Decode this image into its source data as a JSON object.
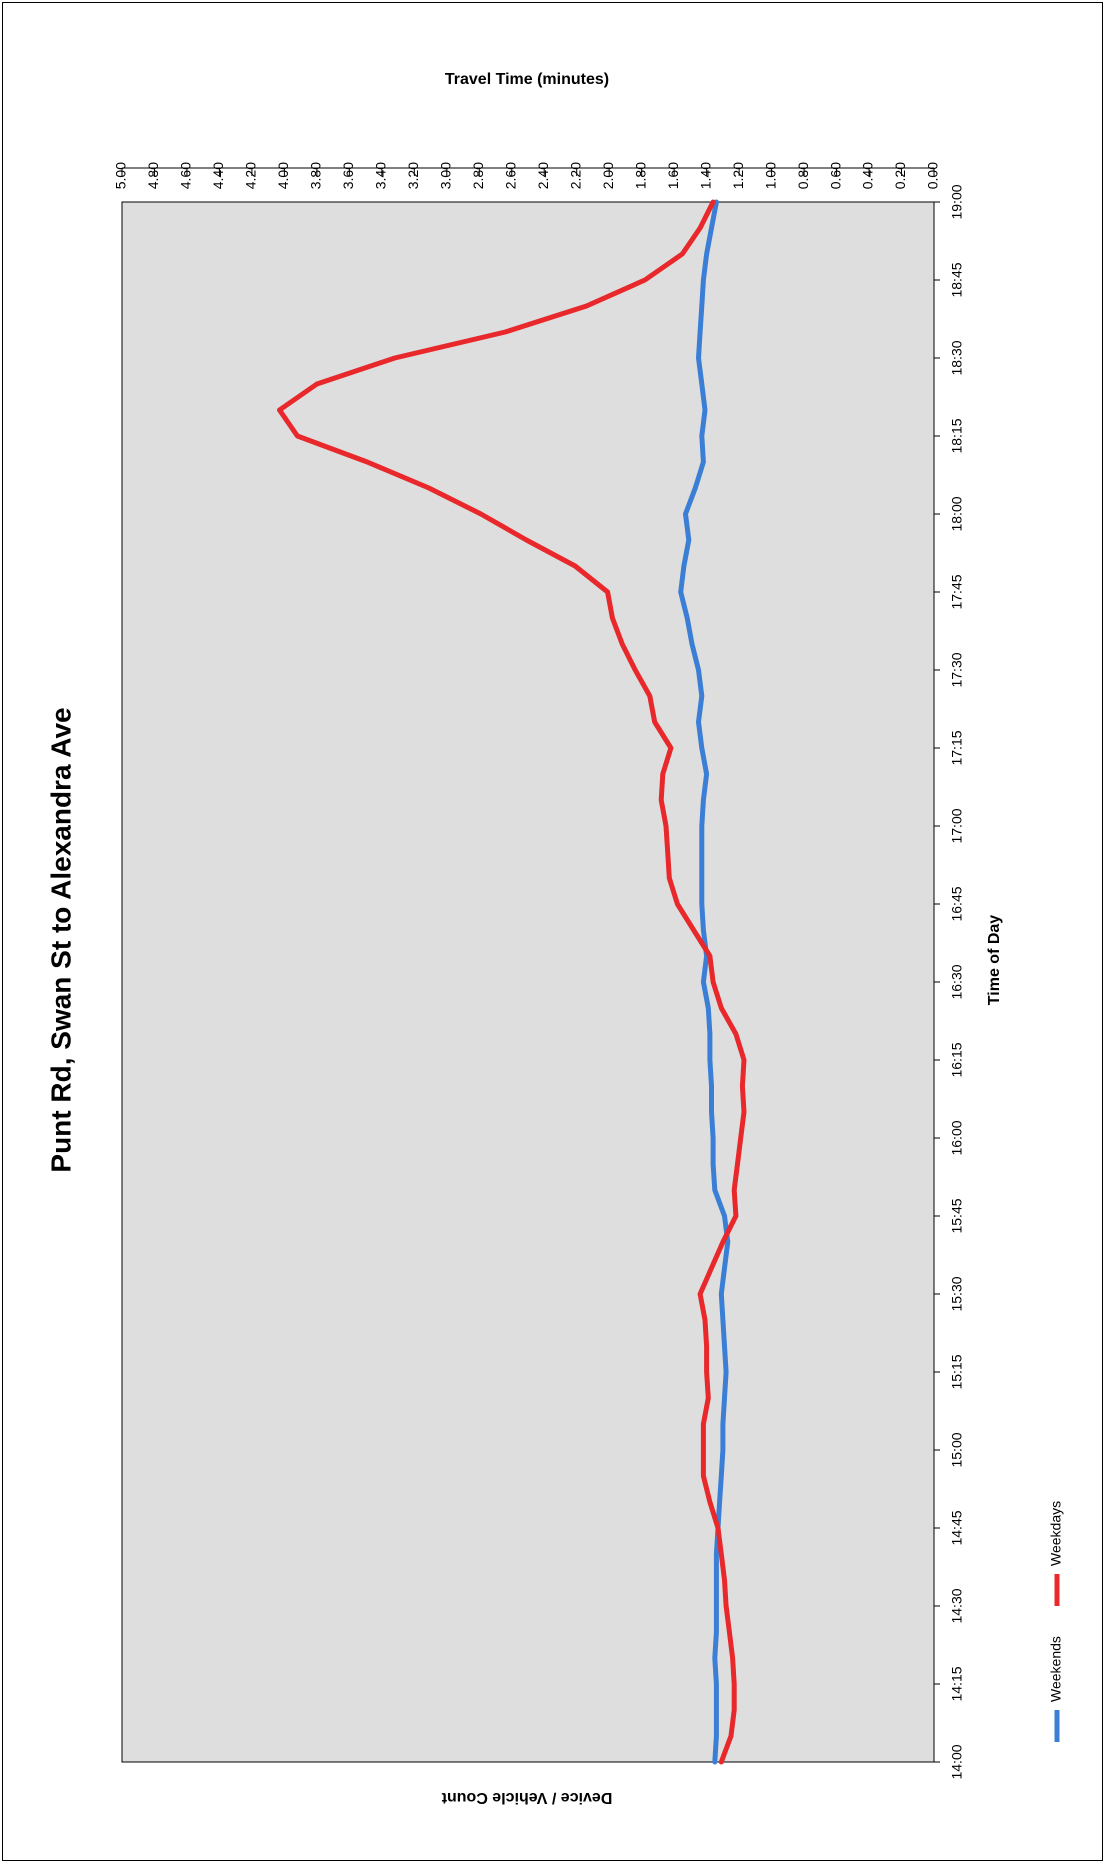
{
  "chart_data": {
    "type": "line",
    "title": "Punt Rd, Swan St to Alexandra Ave",
    "xlabel": "Time of Day",
    "ylabel": "Travel Time (minutes)",
    "secondary_label": "Device / Vehicle Count",
    "x": [
      "14:00",
      "14:05",
      "14:10",
      "14:15",
      "14:20",
      "14:25",
      "14:30",
      "14:35",
      "14:40",
      "14:45",
      "14:50",
      "14:55",
      "15:00",
      "15:05",
      "15:10",
      "15:15",
      "15:20",
      "15:25",
      "15:30",
      "15:35",
      "15:40",
      "15:45",
      "15:50",
      "15:55",
      "16:00",
      "16:05",
      "16:10",
      "16:15",
      "16:20",
      "16:25",
      "16:30",
      "16:35",
      "16:40",
      "16:45",
      "16:50",
      "16:55",
      "17:00",
      "17:05",
      "17:10",
      "17:15",
      "17:20",
      "17:25",
      "17:30",
      "17:35",
      "17:40",
      "17:45",
      "17:50",
      "17:55",
      "18:00",
      "18:05",
      "18:10",
      "18:15",
      "18:20",
      "18:25",
      "18:30",
      "18:35",
      "18:40",
      "18:45",
      "18:50",
      "18:55",
      "19:00"
    ],
    "x_ticks": [
      "14:00",
      "14:15",
      "14:30",
      "14:45",
      "15:00",
      "15:15",
      "15:30",
      "15:45",
      "16:00",
      "16:15",
      "16:30",
      "16:45",
      "17:00",
      "17:15",
      "17:30",
      "17:45",
      "18:00",
      "18:15",
      "18:30",
      "18:45",
      "19:00"
    ],
    "y_ticks": [
      "0.00",
      "0.20",
      "0.40",
      "0.60",
      "0.80",
      "1.00",
      "1.20",
      "1.40",
      "1.60",
      "1.80",
      "2.00",
      "2.20",
      "2.40",
      "2.60",
      "2.80",
      "3.00",
      "3.20",
      "3.40",
      "3.60",
      "3.80",
      "4.00",
      "4.20",
      "4.40",
      "4.60",
      "4.80",
      "5.00"
    ],
    "ylim": [
      0,
      5
    ],
    "orientation": "rotated 90 degrees clockwise",
    "series": [
      {
        "name": "Weekends",
        "color": "#3a7fd5",
        "values": [
          1.35,
          1.34,
          1.34,
          1.34,
          1.35,
          1.34,
          1.34,
          1.34,
          1.34,
          1.33,
          1.32,
          1.31,
          1.3,
          1.3,
          1.29,
          1.28,
          1.29,
          1.3,
          1.31,
          1.29,
          1.27,
          1.29,
          1.35,
          1.36,
          1.36,
          1.37,
          1.37,
          1.38,
          1.38,
          1.39,
          1.42,
          1.4,
          1.42,
          1.43,
          1.43,
          1.43,
          1.43,
          1.42,
          1.4,
          1.43,
          1.45,
          1.43,
          1.45,
          1.49,
          1.52,
          1.56,
          1.54,
          1.51,
          1.53,
          1.47,
          1.42,
          1.43,
          1.41,
          1.43,
          1.45,
          1.44,
          1.43,
          1.42,
          1.4,
          1.37,
          1.34
        ]
      },
      {
        "name": "Weekdays",
        "color": "#e8282b",
        "values": [
          1.31,
          1.25,
          1.23,
          1.23,
          1.24,
          1.26,
          1.28,
          1.29,
          1.31,
          1.33,
          1.38,
          1.42,
          1.42,
          1.42,
          1.39,
          1.4,
          1.4,
          1.41,
          1.44,
          1.37,
          1.3,
          1.22,
          1.23,
          1.21,
          1.19,
          1.17,
          1.18,
          1.17,
          1.22,
          1.31,
          1.36,
          1.38,
          1.48,
          1.58,
          1.63,
          1.64,
          1.65,
          1.68,
          1.67,
          1.62,
          1.72,
          1.75,
          1.84,
          1.92,
          1.98,
          2.01,
          2.21,
          2.51,
          2.79,
          3.11,
          3.49,
          3.92,
          4.03,
          3.8,
          3.32,
          2.64,
          2.14,
          1.78,
          1.55,
          1.44,
          1.36
        ]
      }
    ],
    "legend_position": "bottom-left",
    "grid": false,
    "plot_background": "#dedede"
  }
}
